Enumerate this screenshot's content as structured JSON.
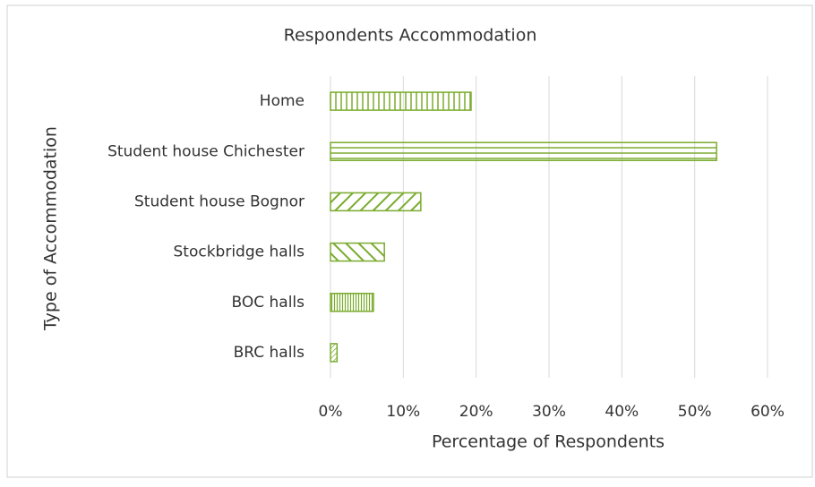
{
  "chart_data": {
    "type": "bar",
    "orientation": "horizontal",
    "title": "Respondents Accommodation",
    "x_label": "Percentage of Respondents",
    "y_label": "Type of Accommodation",
    "categories": [
      "Home",
      "Student house Chichester",
      "Student house Bognor",
      "Stockbridge halls",
      "BOC halls",
      "BRC halls"
    ],
    "values": [
      19.3,
      53,
      12.4,
      7.4,
      5.9,
      0.9
    ],
    "color": "#7aab2e",
    "xlim": [
      0,
      60
    ],
    "xticks": [
      {
        "value": 0,
        "label": "0%"
      },
      {
        "value": 10,
        "label": "10%"
      },
      {
        "value": 20,
        "label": "20%"
      },
      {
        "value": 30,
        "label": "30%"
      },
      {
        "value": 40,
        "label": "40%"
      },
      {
        "value": 50,
        "label": "50%"
      },
      {
        "value": 60,
        "label": "60%"
      }
    ],
    "grid": true
  }
}
